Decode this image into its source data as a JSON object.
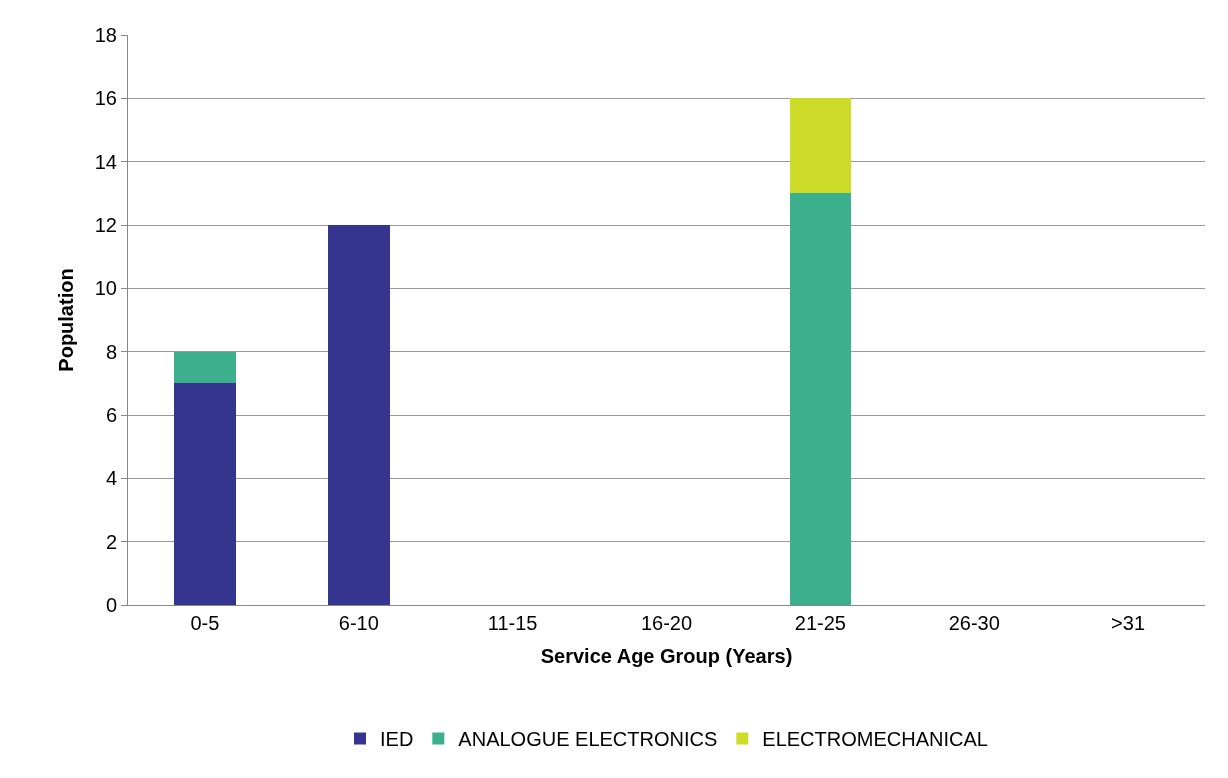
{
  "chart_data": {
    "type": "bar",
    "stacked": true,
    "xlabel": "Service Age Group (Years)",
    "ylabel": "Population",
    "categories": [
      "0-5",
      "6-10",
      "11-15",
      "16-20",
      "21-25",
      "26-30",
      ">31"
    ],
    "series": [
      {
        "name": "IED",
        "color": "#35358f",
        "values": [
          7,
          12,
          0,
          0,
          0,
          0,
          0
        ]
      },
      {
        "name": "ANALOGUE ELECTRONICS",
        "color": "#3caf8c",
        "values": [
          1,
          0,
          0,
          0,
          13,
          0,
          0
        ]
      },
      {
        "name": "ELECTROMECHANICAL",
        "color": "#cddc28",
        "values": [
          0,
          0,
          0,
          0,
          3,
          0,
          0
        ]
      }
    ],
    "ylim": [
      0,
      18
    ],
    "yticks": [
      0,
      2,
      4,
      6,
      8,
      10,
      12,
      14,
      16,
      18
    ],
    "grid": "y",
    "legend": "bottom"
  }
}
